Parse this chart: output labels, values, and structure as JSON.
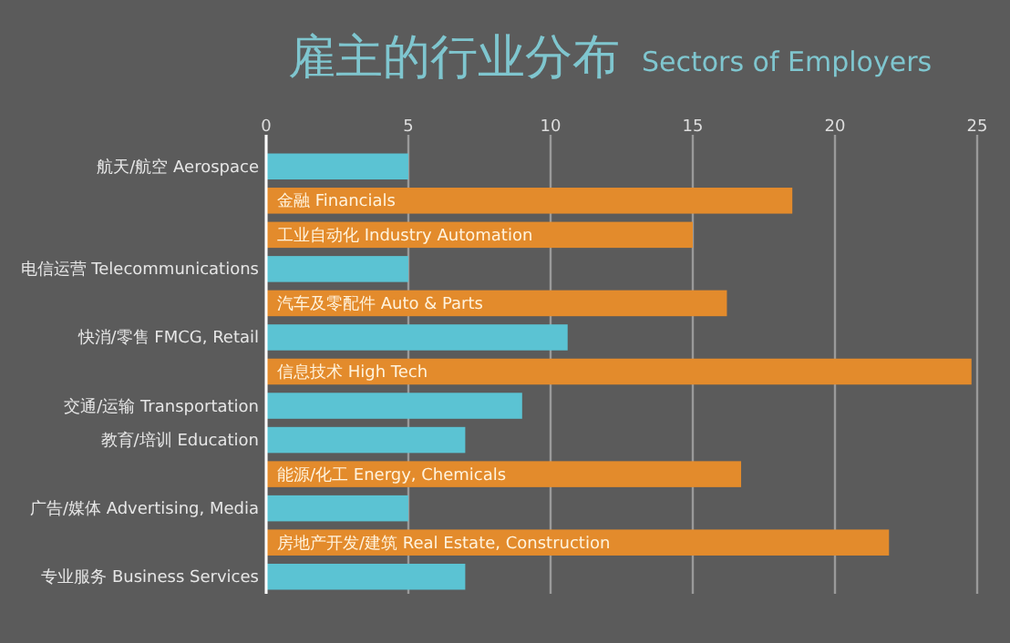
{
  "chart_data": {
    "type": "bar",
    "orientation": "horizontal",
    "title": "雇主的行业分布",
    "subtitle": "Sectors of Employers",
    "categories": [
      "航天/航空 Aerospace",
      "金融 Financials",
      "工业自动化 Industry Automation",
      "电信运营 Telecommunications",
      "汽车及零配件 Auto & Parts",
      "快消/零售 FMCG, Retail",
      "信息技术 High Tech",
      "交通/运输 Transportation",
      "教育/培训 Education",
      "能源/化工 Energy, Chemicals",
      "广告/媒体 Advertising, Media",
      "房地产开发/建筑 Real Estate, Construction",
      "专业服务 Business Services"
    ],
    "series": [
      {
        "color": "#5bc3d3",
        "values": [
          5,
          null,
          null,
          5,
          null,
          10.6,
          null,
          9,
          7,
          null,
          5,
          null,
          7
        ]
      },
      {
        "color": "#e38b2c",
        "values": [
          null,
          18.5,
          15,
          null,
          16.2,
          null,
          24.8,
          null,
          null,
          16.7,
          null,
          21.9,
          null
        ]
      }
    ],
    "xlim": [
      0,
      25
    ],
    "xticks": [
      0,
      5,
      10,
      15,
      20,
      25
    ],
    "grid": "x"
  }
}
